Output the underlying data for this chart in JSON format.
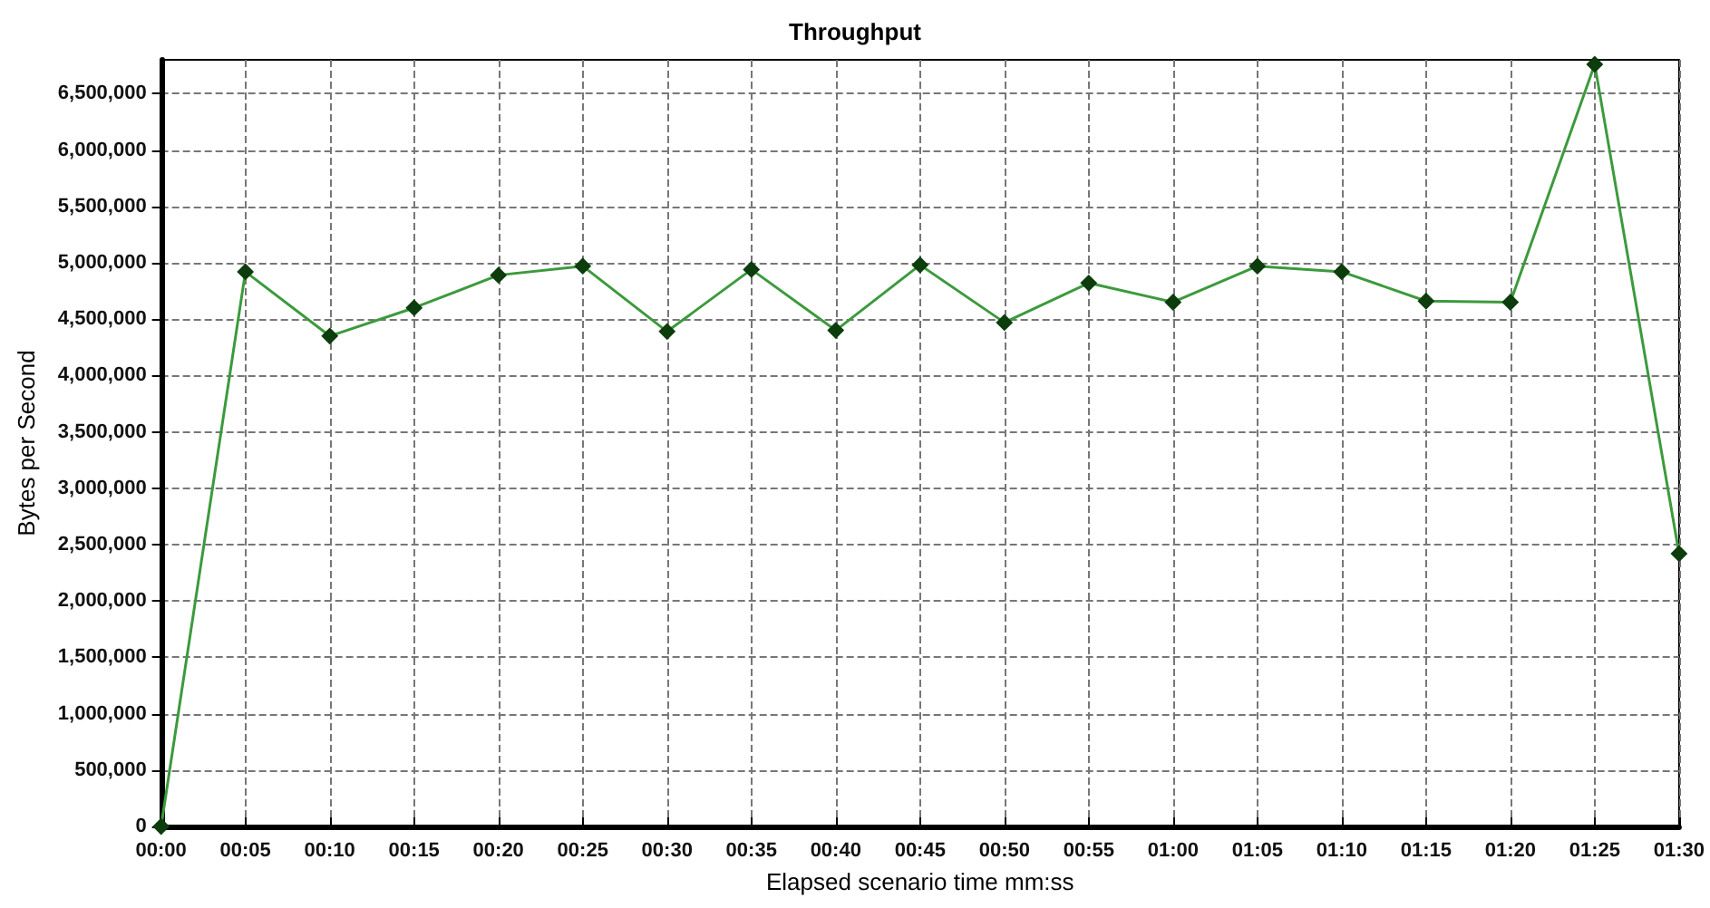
{
  "chart_data": {
    "type": "line",
    "title": "Throughput",
    "xlabel": "Elapsed scenario time mm:ss",
    "ylabel": "Bytes per Second",
    "categories": [
      "00:00",
      "00:05",
      "00:10",
      "00:15",
      "00:20",
      "00:25",
      "00:30",
      "00:35",
      "00:40",
      "00:45",
      "00:50",
      "00:55",
      "01:00",
      "01:05",
      "01:10",
      "01:15",
      "01:20",
      "01:25",
      "01:30"
    ],
    "series": [
      {
        "color": "#3c9a3c",
        "values": [
          0,
          4920000,
          4350000,
          4600000,
          4890000,
          4970000,
          4390000,
          4940000,
          4400000,
          4980000,
          4470000,
          4820000,
          4650000,
          4970000,
          4920000,
          4660000,
          4650000,
          6760000,
          2420000
        ]
      }
    ],
    "ylim": [
      0,
      6800000
    ],
    "yticks": [
      0,
      {
        "value": 500000,
        "label": "500,000"
      },
      {
        "value": 1000000,
        "label": "1,000,000"
      },
      {
        "value": 1500000,
        "label": "1,500,000"
      },
      {
        "value": 2000000,
        "label": "2,000,000"
      },
      {
        "value": 2500000,
        "label": "2,500,000"
      },
      {
        "value": 3000000,
        "label": "3,000,000"
      },
      {
        "value": 3500000,
        "label": "3,500,000"
      },
      {
        "value": 4000000,
        "label": "4,000,000"
      },
      {
        "value": 4500000,
        "label": "4,500,000"
      },
      {
        "value": 5000000,
        "label": "5,000,000"
      },
      {
        "value": 5500000,
        "label": "5,500,000"
      },
      {
        "value": 6000000,
        "label": "6,000,000"
      },
      {
        "value": 6500000,
        "label": "6,500,000"
      }
    ],
    "grid": true,
    "marker": "diamond",
    "line_style": "solid"
  }
}
